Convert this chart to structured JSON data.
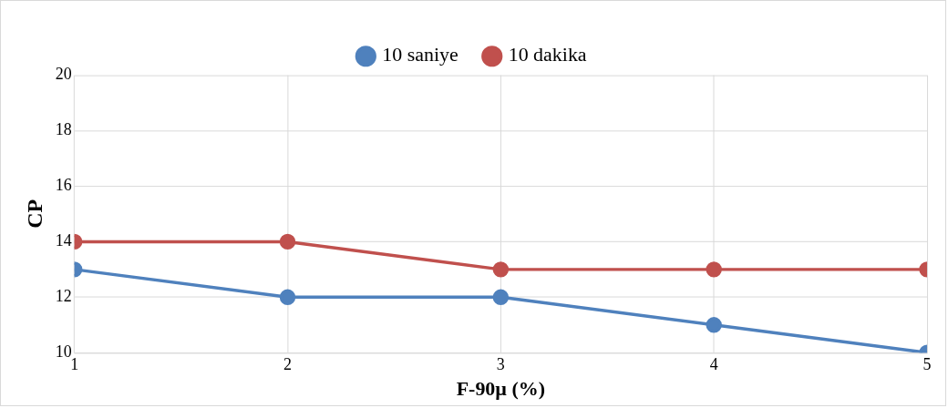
{
  "chart_data": {
    "type": "line",
    "xlabel": "F-90µ (%)",
    "ylabel": "CP",
    "x": [
      1,
      2,
      3,
      4,
      5
    ],
    "series": [
      {
        "name": "10 saniye",
        "color": "#4f81bd",
        "values": [
          13,
          12,
          12,
          11,
          10
        ]
      },
      {
        "name": "10 dakika",
        "color": "#c0504d",
        "values": [
          14,
          14,
          13,
          13,
          13
        ]
      }
    ],
    "xlim": [
      1,
      5
    ],
    "xticks": [
      1,
      2,
      3,
      4,
      5
    ],
    "ylim": [
      10,
      20
    ],
    "yticks": [
      10,
      12,
      14,
      16,
      18,
      20
    ],
    "grid": true,
    "legend": "top",
    "marker": "circle",
    "line_style": "solid"
  }
}
